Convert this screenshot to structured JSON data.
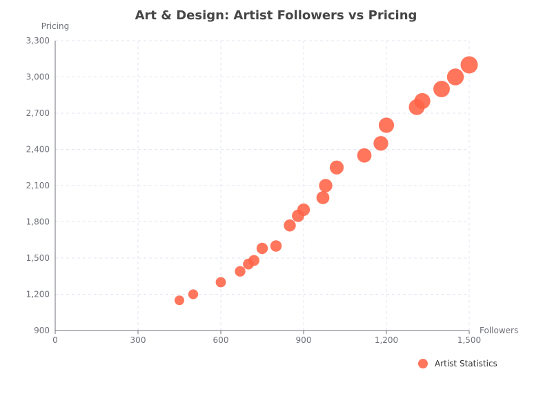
{
  "chart_data": {
    "type": "scatter",
    "title": "Art & Design: Artist Followers vs Pricing",
    "xlabel": "Followers",
    "ylabel": "Pricing",
    "xlim": [
      0,
      1500
    ],
    "ylim": [
      900,
      3300
    ],
    "x_ticks": [
      "0",
      "300",
      "600",
      "900",
      "1,200",
      "1,500"
    ],
    "y_ticks": [
      "900",
      "1,200",
      "1,500",
      "1,800",
      "2,100",
      "2,400",
      "2,700",
      "3,000",
      "3,300"
    ],
    "x_tick_values": [
      0,
      300,
      600,
      900,
      1200,
      1500
    ],
    "y_tick_values": [
      900,
      1200,
      1500,
      1800,
      2100,
      2400,
      2700,
      3000,
      3300
    ],
    "grid": true,
    "legend_position": "bottom-right",
    "point_color": "#ff6347",
    "series": [
      {
        "name": "Artist Statistics",
        "points": [
          {
            "x": 450,
            "y": 1150
          },
          {
            "x": 500,
            "y": 1200
          },
          {
            "x": 600,
            "y": 1300
          },
          {
            "x": 670,
            "y": 1390
          },
          {
            "x": 700,
            "y": 1450
          },
          {
            "x": 720,
            "y": 1480
          },
          {
            "x": 750,
            "y": 1580
          },
          {
            "x": 800,
            "y": 1600
          },
          {
            "x": 850,
            "y": 1770
          },
          {
            "x": 880,
            "y": 1850
          },
          {
            "x": 900,
            "y": 1900
          },
          {
            "x": 970,
            "y": 2000
          },
          {
            "x": 980,
            "y": 2100
          },
          {
            "x": 1020,
            "y": 2250
          },
          {
            "x": 1120,
            "y": 2350
          },
          {
            "x": 1180,
            "y": 2450
          },
          {
            "x": 1200,
            "y": 2600
          },
          {
            "x": 1310,
            "y": 2750
          },
          {
            "x": 1330,
            "y": 2800
          },
          {
            "x": 1400,
            "y": 2900
          },
          {
            "x": 1450,
            "y": 3000
          },
          {
            "x": 1500,
            "y": 3100
          }
        ]
      }
    ]
  }
}
